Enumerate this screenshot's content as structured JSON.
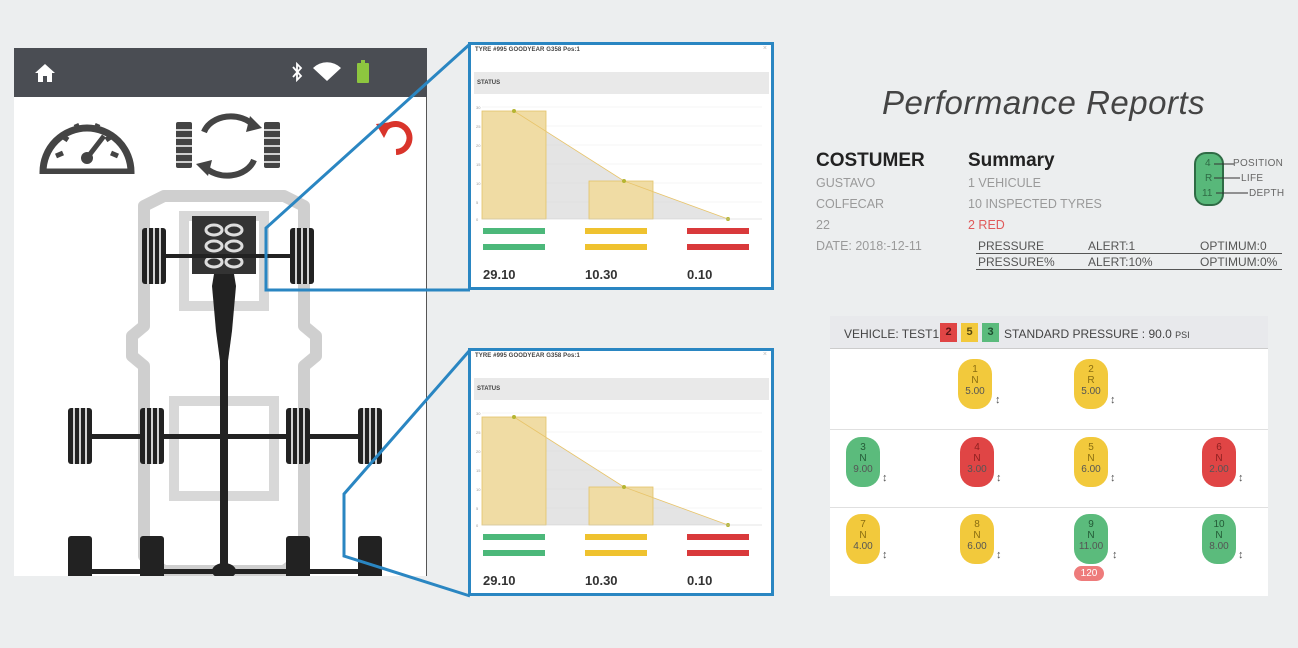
{
  "popups": [
    {
      "title": "TYRE #995 GOODYEAR G358 Pos:1",
      "close": "×",
      "status_label": "STATUS",
      "values": [
        "29.10",
        "10.30",
        "0.10"
      ],
      "y_ticks": [
        "30",
        "25",
        "20",
        "15",
        "10",
        "5",
        "0"
      ]
    },
    {
      "title": "TYRE #995 GOODYEAR G358 Pos:1",
      "close": "×",
      "status_label": "STATUS",
      "values": [
        "29.10",
        "10.30",
        "0.10"
      ],
      "y_ticks": [
        "30",
        "25",
        "20",
        "15",
        "10",
        "5",
        "0"
      ]
    }
  ],
  "reports": {
    "title": "Performance Reports",
    "customer": {
      "heading": "COSTUMER",
      "lines": [
        "GUSTAVO",
        "COLFECAR",
        "22",
        "DATE: 2018:-12-11"
      ]
    },
    "summary": {
      "heading": "Summary",
      "lines": [
        "1 VEHICULE",
        "10 INSPECTED TYRES"
      ],
      "red_line": "2 RED"
    },
    "pressure_rows": [
      [
        "PRESSURE",
        "ALERT:1",
        "OPTIMUM:0"
      ],
      [
        "PRESSURE%",
        "ALERT:10%",
        "OPTIMUM:0%"
      ]
    ],
    "legend": {
      "values": [
        "4",
        "R",
        "11"
      ],
      "labels": [
        "POSITION",
        "LIFE",
        "DEPTH"
      ]
    }
  },
  "vehicle": {
    "label": "VEHICLE: TEST1",
    "badges": [
      {
        "value": "2",
        "color": "#e04545"
      },
      {
        "value": "5",
        "color": "#f2c93c"
      },
      {
        "value": "3",
        "color": "#5bbb7c"
      }
    ],
    "std_label": "STANDARD PRESSURE : 90.0",
    "std_unit": "PSI",
    "tyres": [
      {
        "pos": "1",
        "life": "N",
        "depth": "5.00",
        "status": "y"
      },
      {
        "pos": "2",
        "life": "R",
        "depth": "5.00",
        "status": "y"
      },
      {
        "pos": "3",
        "life": "N",
        "depth": "9.00",
        "status": "g"
      },
      {
        "pos": "4",
        "life": "N",
        "depth": "3.00",
        "status": "r"
      },
      {
        "pos": "5",
        "life": "N",
        "depth": "6.00",
        "status": "y"
      },
      {
        "pos": "6",
        "life": "N",
        "depth": "2.00",
        "status": "r"
      },
      {
        "pos": "7",
        "life": "N",
        "depth": "4.00",
        "status": "y"
      },
      {
        "pos": "8",
        "life": "N",
        "depth": "6.00",
        "status": "y"
      },
      {
        "pos": "9",
        "life": "N",
        "depth": "11.00",
        "status": "g"
      },
      {
        "pos": "10",
        "life": "N",
        "depth": "8.00",
        "status": "g"
      }
    ],
    "arrow": "↕",
    "extra": "120"
  },
  "colors": {
    "accent_blue": "#2a86c2",
    "green": "#5bbb7c",
    "yellow": "#f2c93c",
    "red": "#e04545"
  }
}
